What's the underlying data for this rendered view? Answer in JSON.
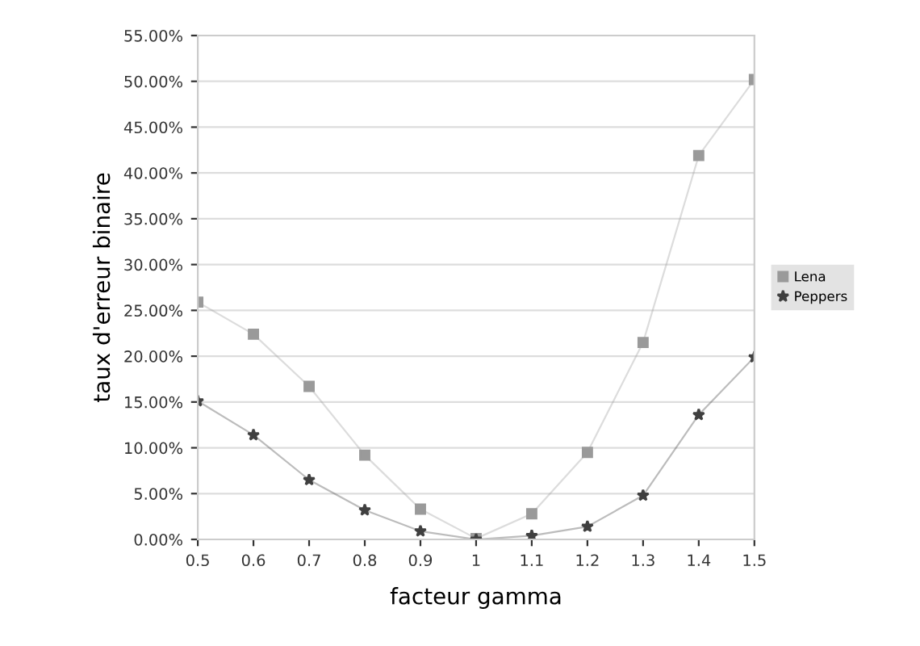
{
  "chart_data": {
    "type": "line",
    "xlabel": "facteur gamma",
    "ylabel": "taux d'erreur binaire",
    "x": [
      0.5,
      0.6,
      0.7,
      0.8,
      0.9,
      1,
      1.1,
      1.2,
      1.3,
      1.4,
      1.5
    ],
    "series": [
      {
        "name": "Lena",
        "color": "#9a9a9a",
        "marker": "square",
        "values": [
          25.9,
          22.4,
          16.7,
          9.2,
          3.3,
          0.1,
          2.8,
          9.5,
          21.5,
          41.9,
          50.2
        ]
      },
      {
        "name": "Peppers",
        "color": "#404040",
        "marker": "star",
        "values": [
          15.1,
          11.4,
          6.5,
          3.2,
          0.9,
          0.0,
          0.4,
          1.4,
          4.8,
          13.6,
          19.9
        ]
      }
    ],
    "xlim": [
      0.5,
      1.5
    ],
    "xticks": [
      {
        "value": 0.5,
        "label": "0.5"
      },
      {
        "value": 0.6,
        "label": "0.6"
      },
      {
        "value": 0.7,
        "label": "0.7"
      },
      {
        "value": 0.8,
        "label": "0.8"
      },
      {
        "value": 0.9,
        "label": "0.9"
      },
      {
        "value": 1,
        "label": "1"
      },
      {
        "value": 1.1,
        "label": "1.1"
      },
      {
        "value": 1.2,
        "label": "1.2"
      },
      {
        "value": 1.3,
        "label": "1.3"
      },
      {
        "value": 1.4,
        "label": "1.4"
      },
      {
        "value": 1.5,
        "label": "1.5"
      }
    ],
    "ylim": [
      0,
      55
    ],
    "yticks": [
      {
        "value": 0,
        "label": "0.00%"
      },
      {
        "value": 5,
        "label": "5.00%"
      },
      {
        "value": 10,
        "label": "10.00%"
      },
      {
        "value": 15,
        "label": "15.00%"
      },
      {
        "value": 20,
        "label": "20.00%"
      },
      {
        "value": 25,
        "label": "25.00%"
      },
      {
        "value": 30,
        "label": "30.00%"
      },
      {
        "value": 35,
        "label": "35.00%"
      },
      {
        "value": 40,
        "label": "40.00%"
      },
      {
        "value": 45,
        "label": "45.00%"
      },
      {
        "value": 50,
        "label": "50.00%"
      },
      {
        "value": 55,
        "label": "55.00%"
      }
    ],
    "grid": "y",
    "legend": "right"
  }
}
